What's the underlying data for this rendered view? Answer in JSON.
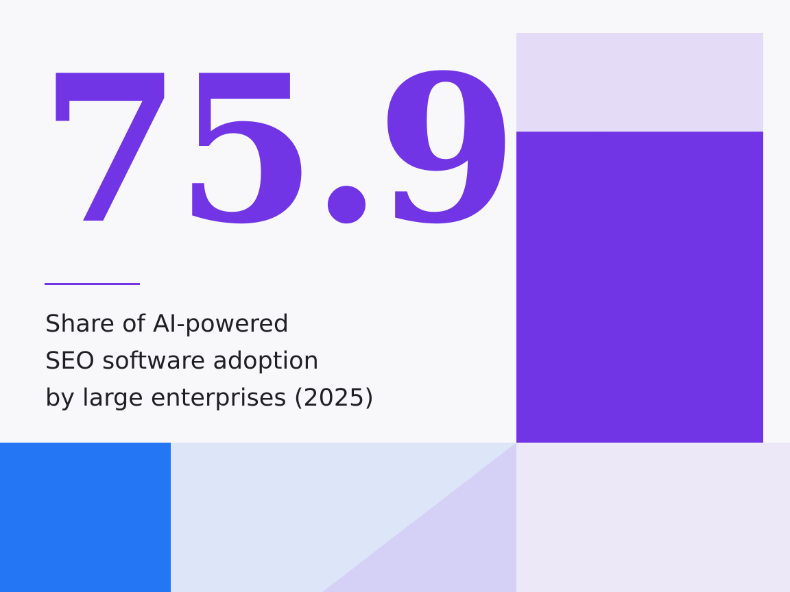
{
  "headline": {
    "value_text": "75.9",
    "unit_text": "%"
  },
  "caption": {
    "lines": [
      "Share of AI-powered",
      "SEO software adoption",
      "by large enterprises (2025)"
    ]
  },
  "colors": {
    "accent": "#7135e6",
    "track": "#e4dcf7",
    "blue": "#2476f4",
    "light_blue": "#dce6f8",
    "lavender": "#d5d0f5",
    "pale_lavender": "#ece8f8",
    "text": "#1f1f24",
    "background": "#f8f8fa"
  },
  "chart_data": {
    "type": "bar",
    "categories": [
      ""
    ],
    "values": [
      75.9
    ],
    "title": "",
    "xlabel": "",
    "ylabel": "",
    "ylim": [
      0,
      100
    ],
    "grid": false,
    "legend": "none"
  }
}
